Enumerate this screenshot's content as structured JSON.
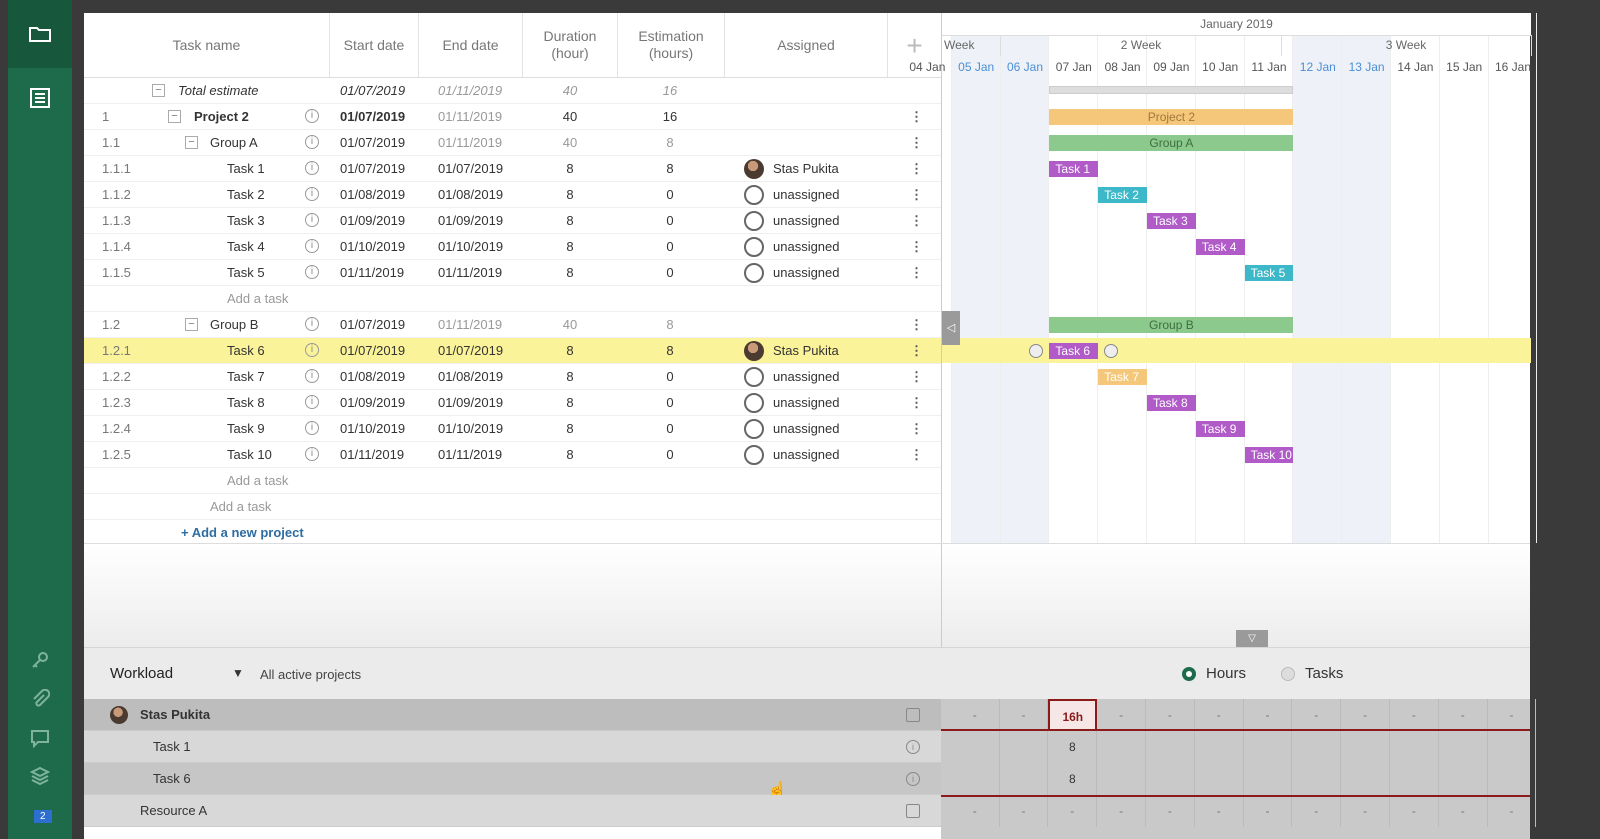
{
  "header": {
    "task_name": "Task name",
    "start_date": "Start date",
    "end_date": "End date",
    "duration": "Duration (hour)",
    "estimation": "Estimation (hours)",
    "assigned": "Assigned",
    "add_column": "+"
  },
  "total": {
    "label": "Total estimate",
    "start": "01/07/2019",
    "end": "01/11/2019",
    "duration": "40",
    "estimation": "16"
  },
  "rows": [
    {
      "wbs": "1",
      "name": "Project 2",
      "start": "01/07/2019",
      "end": "01/11/2019",
      "duration": "40",
      "estimation": "16",
      "assignee": "",
      "level": 0
    },
    {
      "wbs": "1.1",
      "name": "Group A",
      "start": "01/07/2019",
      "end": "01/11/2019",
      "duration": "40",
      "estimation": "8",
      "assignee": "",
      "level": 1
    },
    {
      "wbs": "1.1.1",
      "name": "Task 1",
      "start": "01/07/2019",
      "end": "01/07/2019",
      "duration": "8",
      "estimation": "8",
      "assignee": "Stas Pukita",
      "level": 2
    },
    {
      "wbs": "1.1.2",
      "name": "Task 2",
      "start": "01/08/2019",
      "end": "01/08/2019",
      "duration": "8",
      "estimation": "0",
      "assignee": "unassigned",
      "level": 2
    },
    {
      "wbs": "1.1.3",
      "name": "Task 3",
      "start": "01/09/2019",
      "end": "01/09/2019",
      "duration": "8",
      "estimation": "0",
      "assignee": "unassigned",
      "level": 2
    },
    {
      "wbs": "1.1.4",
      "name": "Task 4",
      "start": "01/10/2019",
      "end": "01/10/2019",
      "duration": "8",
      "estimation": "0",
      "assignee": "unassigned",
      "level": 2
    },
    {
      "wbs": "1.1.5",
      "name": "Task 5",
      "start": "01/11/2019",
      "end": "01/11/2019",
      "duration": "8",
      "estimation": "0",
      "assignee": "unassigned",
      "level": 2
    },
    {
      "wbs": "1.2",
      "name": "Group B",
      "start": "01/07/2019",
      "end": "01/11/2019",
      "duration": "40",
      "estimation": "8",
      "assignee": "",
      "level": 1
    },
    {
      "wbs": "1.2.1",
      "name": "Task 6",
      "start": "01/07/2019",
      "end": "01/07/2019",
      "duration": "8",
      "estimation": "8",
      "assignee": "Stas Pukita",
      "level": 2
    },
    {
      "wbs": "1.2.2",
      "name": "Task 7",
      "start": "01/08/2019",
      "end": "01/08/2019",
      "duration": "8",
      "estimation": "0",
      "assignee": "unassigned",
      "level": 2
    },
    {
      "wbs": "1.2.3",
      "name": "Task 8",
      "start": "01/09/2019",
      "end": "01/09/2019",
      "duration": "8",
      "estimation": "0",
      "assignee": "unassigned",
      "level": 2
    },
    {
      "wbs": "1.2.4",
      "name": "Task 9",
      "start": "01/10/2019",
      "end": "01/10/2019",
      "duration": "8",
      "estimation": "0",
      "assignee": "unassigned",
      "level": 2
    },
    {
      "wbs": "1.2.5",
      "name": "Task 10",
      "start": "01/11/2019",
      "end": "01/11/2019",
      "duration": "8",
      "estimation": "0",
      "assignee": "unassigned",
      "level": 2
    }
  ],
  "add_task_label": "Add a task",
  "add_project_label": "+ Add a new project",
  "gantt": {
    "month": "January 2019",
    "weeks": [
      "Week",
      "2 Week",
      "3 Week"
    ],
    "days": [
      "04 Jan",
      "05 Jan",
      "06 Jan",
      "07 Jan",
      "08 Jan",
      "09 Jan",
      "10 Jan",
      "11 Jan",
      "12 Jan",
      "13 Jan",
      "14 Jan",
      "15 Jan",
      "16 Jan"
    ],
    "weekend_days": [
      "05 Jan",
      "06 Jan",
      "12 Jan",
      "13 Jan"
    ],
    "bar_labels": {
      "project": "Project 2",
      "group_a": "Group A",
      "group_b": "Group B",
      "tasks": [
        "Task 1",
        "Task 2",
        "Task 3",
        "Task 4",
        "Task 5",
        "Task 6",
        "Task 7",
        "Task 8",
        "Task 9",
        "Task 10"
      ]
    },
    "colors": {
      "purple": "#b05bc8",
      "teal": "#3db8c8",
      "orange": "#f5c77a",
      "green": "#8cc98c",
      "highlight": "#fbf39a"
    }
  },
  "workload": {
    "title": "Workload",
    "scope": "All active projects",
    "options": [
      "Hours",
      "Tasks"
    ],
    "selected": "Hours",
    "rows": [
      {
        "name": "Stas Pukita",
        "type": "resource"
      },
      {
        "name": "Task 1",
        "type": "task",
        "value": "8"
      },
      {
        "name": "Task 6",
        "type": "task",
        "value": "8"
      },
      {
        "name": "Resource A",
        "type": "resource"
      }
    ],
    "total_cell": "16h",
    "empty_cell": "-"
  },
  "sidebar": {
    "icons": [
      "folder-icon",
      "list-icon",
      "key-icon",
      "paperclip-icon",
      "comment-icon",
      "layers-icon",
      "badge-icon"
    ],
    "badge_count": "2"
  }
}
